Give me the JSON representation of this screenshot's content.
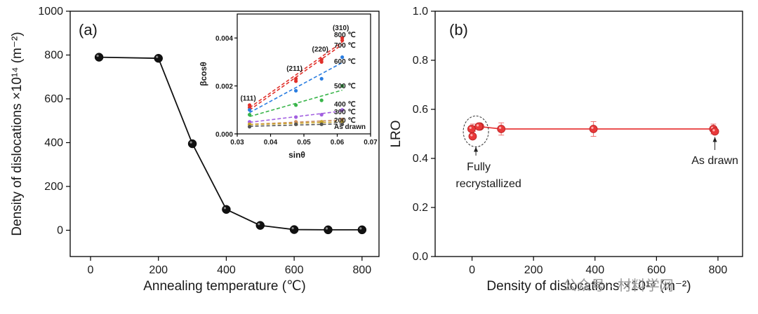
{
  "watermark": "公众号 · 材料学网",
  "chart_data": [
    {
      "type": "line",
      "panel_label": "(a)",
      "xlabel": "Annealing temperature (℃)",
      "ylabel": "Density of dislocations ×10¹⁴ (m⁻²)",
      "xlim": [
        -60,
        850
      ],
      "ylim": [
        -120,
        1000
      ],
      "xticks": [
        0,
        200,
        400,
        600,
        800
      ],
      "yticks": [
        0,
        200,
        400,
        600,
        800,
        1000
      ],
      "x": [
        25,
        200,
        300,
        400,
        500,
        600,
        700,
        800
      ],
      "y": [
        790,
        785,
        395,
        95,
        22,
        3,
        2,
        2
      ],
      "marker_color": "#111111",
      "line_color": "#111111"
    },
    {
      "type": "scatter",
      "panel_label": "inset",
      "xlabel": "sinθ",
      "ylabel": "βcosθ",
      "xlim": [
        0.03,
        0.07
      ],
      "ylim": [
        0,
        0.005
      ],
      "xticks": [
        "0.03",
        "0.04",
        "0.05",
        "0.06",
        "0.07"
      ],
      "yticks": [
        "0.000",
        "0.002",
        "0.004"
      ],
      "plane_labels": [
        {
          "text": "(111)",
          "x": 0.0337,
          "y": 0.00115
        },
        {
          "text": "(211)",
          "x": 0.0476,
          "y": 0.0024
        },
        {
          "text": "(220)",
          "x": 0.0553,
          "y": 0.0032
        },
        {
          "text": "(310)",
          "x": 0.0615,
          "y": 0.0041
        }
      ],
      "series": [
        {
          "name": "800 ℃",
          "color": "#e0302a",
          "x": [
            0.0337,
            0.0476,
            0.0553,
            0.0615
          ],
          "y": [
            0.0012,
            0.0023,
            0.0031,
            0.004
          ]
        },
        {
          "name": "700 ℃",
          "color": "#e0302a",
          "x": [
            0.0337,
            0.0476,
            0.0553,
            0.0615
          ],
          "y": [
            0.0011,
            0.0022,
            0.003,
            0.0039
          ]
        },
        {
          "name": "600 ℃",
          "color": "#2a7de0",
          "x": [
            0.0337,
            0.0476,
            0.0553,
            0.0615
          ],
          "y": [
            0.001,
            0.0018,
            0.0023,
            0.0032
          ]
        },
        {
          "name": "500 ℃",
          "color": "#39b54a",
          "x": [
            0.0337,
            0.0476,
            0.0553,
            0.0615
          ],
          "y": [
            0.0008,
            0.0012,
            0.0014,
            0.002
          ]
        },
        {
          "name": "400 ℃",
          "color": "#a25fe0",
          "x": [
            0.0337,
            0.0476,
            0.0553,
            0.0615
          ],
          "y": [
            0.0005,
            0.0007,
            0.0008,
            0.001
          ]
        },
        {
          "name": "300 ℃",
          "color": "#c98a5a",
          "x": [
            0.0337,
            0.0476,
            0.0553,
            0.0615
          ],
          "y": [
            0.0004,
            0.0005,
            0.0005,
            0.0006
          ]
        },
        {
          "name": "200 ℃",
          "color": "#c9a62a",
          "x": [
            0.0337,
            0.0476,
            0.0553,
            0.0615
          ],
          "y": [
            0.0004,
            0.0004,
            0.0005,
            0.0005
          ]
        },
        {
          "name": "As drawn",
          "color": "#555555",
          "x": [
            0.0337,
            0.0476,
            0.0553,
            0.0615
          ],
          "y": [
            0.0003,
            0.0004,
            0.0004,
            0.0004
          ]
        }
      ]
    },
    {
      "type": "line",
      "panel_label": "(b)",
      "xlabel": "Density of dislocations ×10¹⁴ (m⁻²)",
      "ylabel": "LRO",
      "xlim": [
        -120,
        880
      ],
      "ylim": [
        0,
        1.0
      ],
      "xticks": [
        0,
        200,
        400,
        600,
        800
      ],
      "yticks": [
        "0.0",
        "0.2",
        "0.4",
        "0.6",
        "0.8",
        "1.0"
      ],
      "x": [
        2,
        3,
        3,
        22,
        95,
        395,
        785,
        790
      ],
      "y": [
        0.49,
        0.52,
        0.53,
        0.53,
        0.52,
        0.52,
        0.52,
        0.51
      ],
      "errors": [
        0.01,
        0.01,
        0.01,
        0.01,
        0.025,
        0.03,
        0.02,
        0.01
      ],
      "line_color": "#e8393a",
      "annotations": [
        {
          "text": "Fully",
          "line2": "recrystallized"
        },
        {
          "text": "As drawn"
        }
      ]
    }
  ]
}
